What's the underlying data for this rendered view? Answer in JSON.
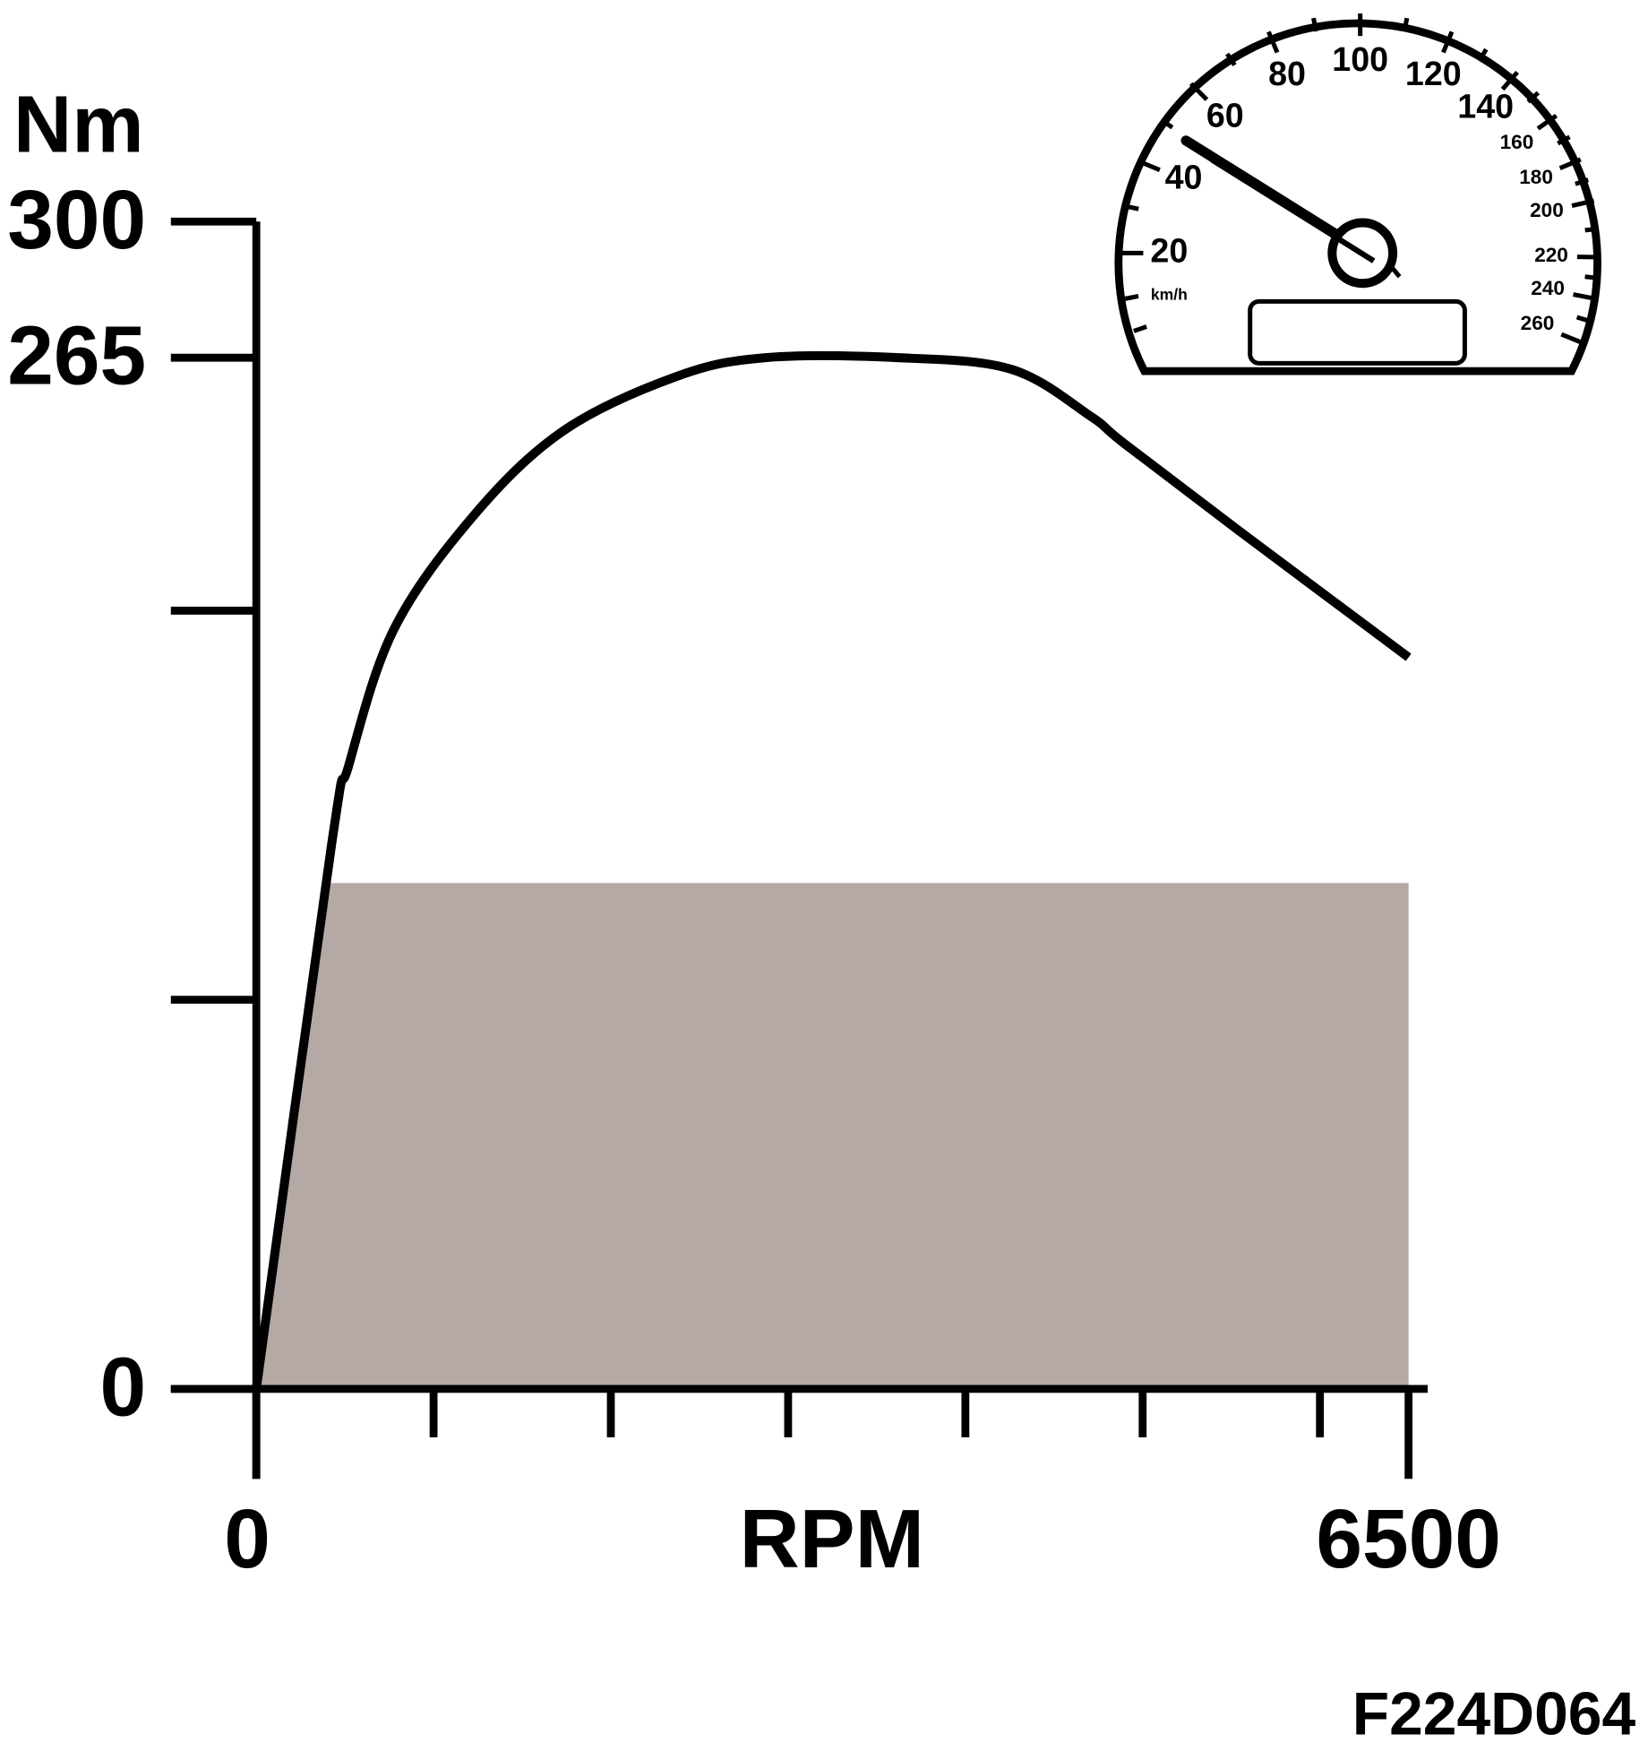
{
  "chart_data": {
    "type": "line",
    "y_label": "Nm",
    "x_label": "RPM",
    "xlim": [
      0,
      6500
    ],
    "xticks": [
      0,
      {
        "value": 1000,
        "label": null
      },
      {
        "value": 2000,
        "label": null
      },
      {
        "value": 3000,
        "label": null
      },
      {
        "value": 4000,
        "label": null
      },
      {
        "value": 5000,
        "label": null
      },
      {
        "value": 6000,
        "label": null
      },
      6500
    ],
    "ylim": [
      0,
      300
    ],
    "yticks": [
      0,
      {
        "value": 100,
        "label": null
      },
      {
        "value": 200,
        "label": null
      },
      265,
      300
    ],
    "series": [
      {
        "color": "#b5a9a6",
        "fill": true,
        "x": [
          0,
          420,
          6500
        ],
        "values": [
          0,
          130,
          130
        ]
      },
      {
        "color": "#000000",
        "fill": false,
        "x": [
          0,
          425,
          520,
          774,
          1218,
          1725,
          2359,
          2866,
          3627,
          4261,
          4705,
          4895,
          5530,
          6500
        ],
        "values": [
          0,
          140,
          160,
          195,
          224,
          246,
          260,
          265,
          265,
          262,
          250,
          243,
          221,
          188
        ]
      }
    ]
  },
  "speedometer": {
    "scale_labels": [
      "20",
      "40",
      "60",
      "80",
      "100",
      "120",
      "140",
      "160",
      "180",
      "200",
      "220",
      "240",
      "260"
    ],
    "unit": "km/h"
  },
  "figure_id": "F224D064"
}
